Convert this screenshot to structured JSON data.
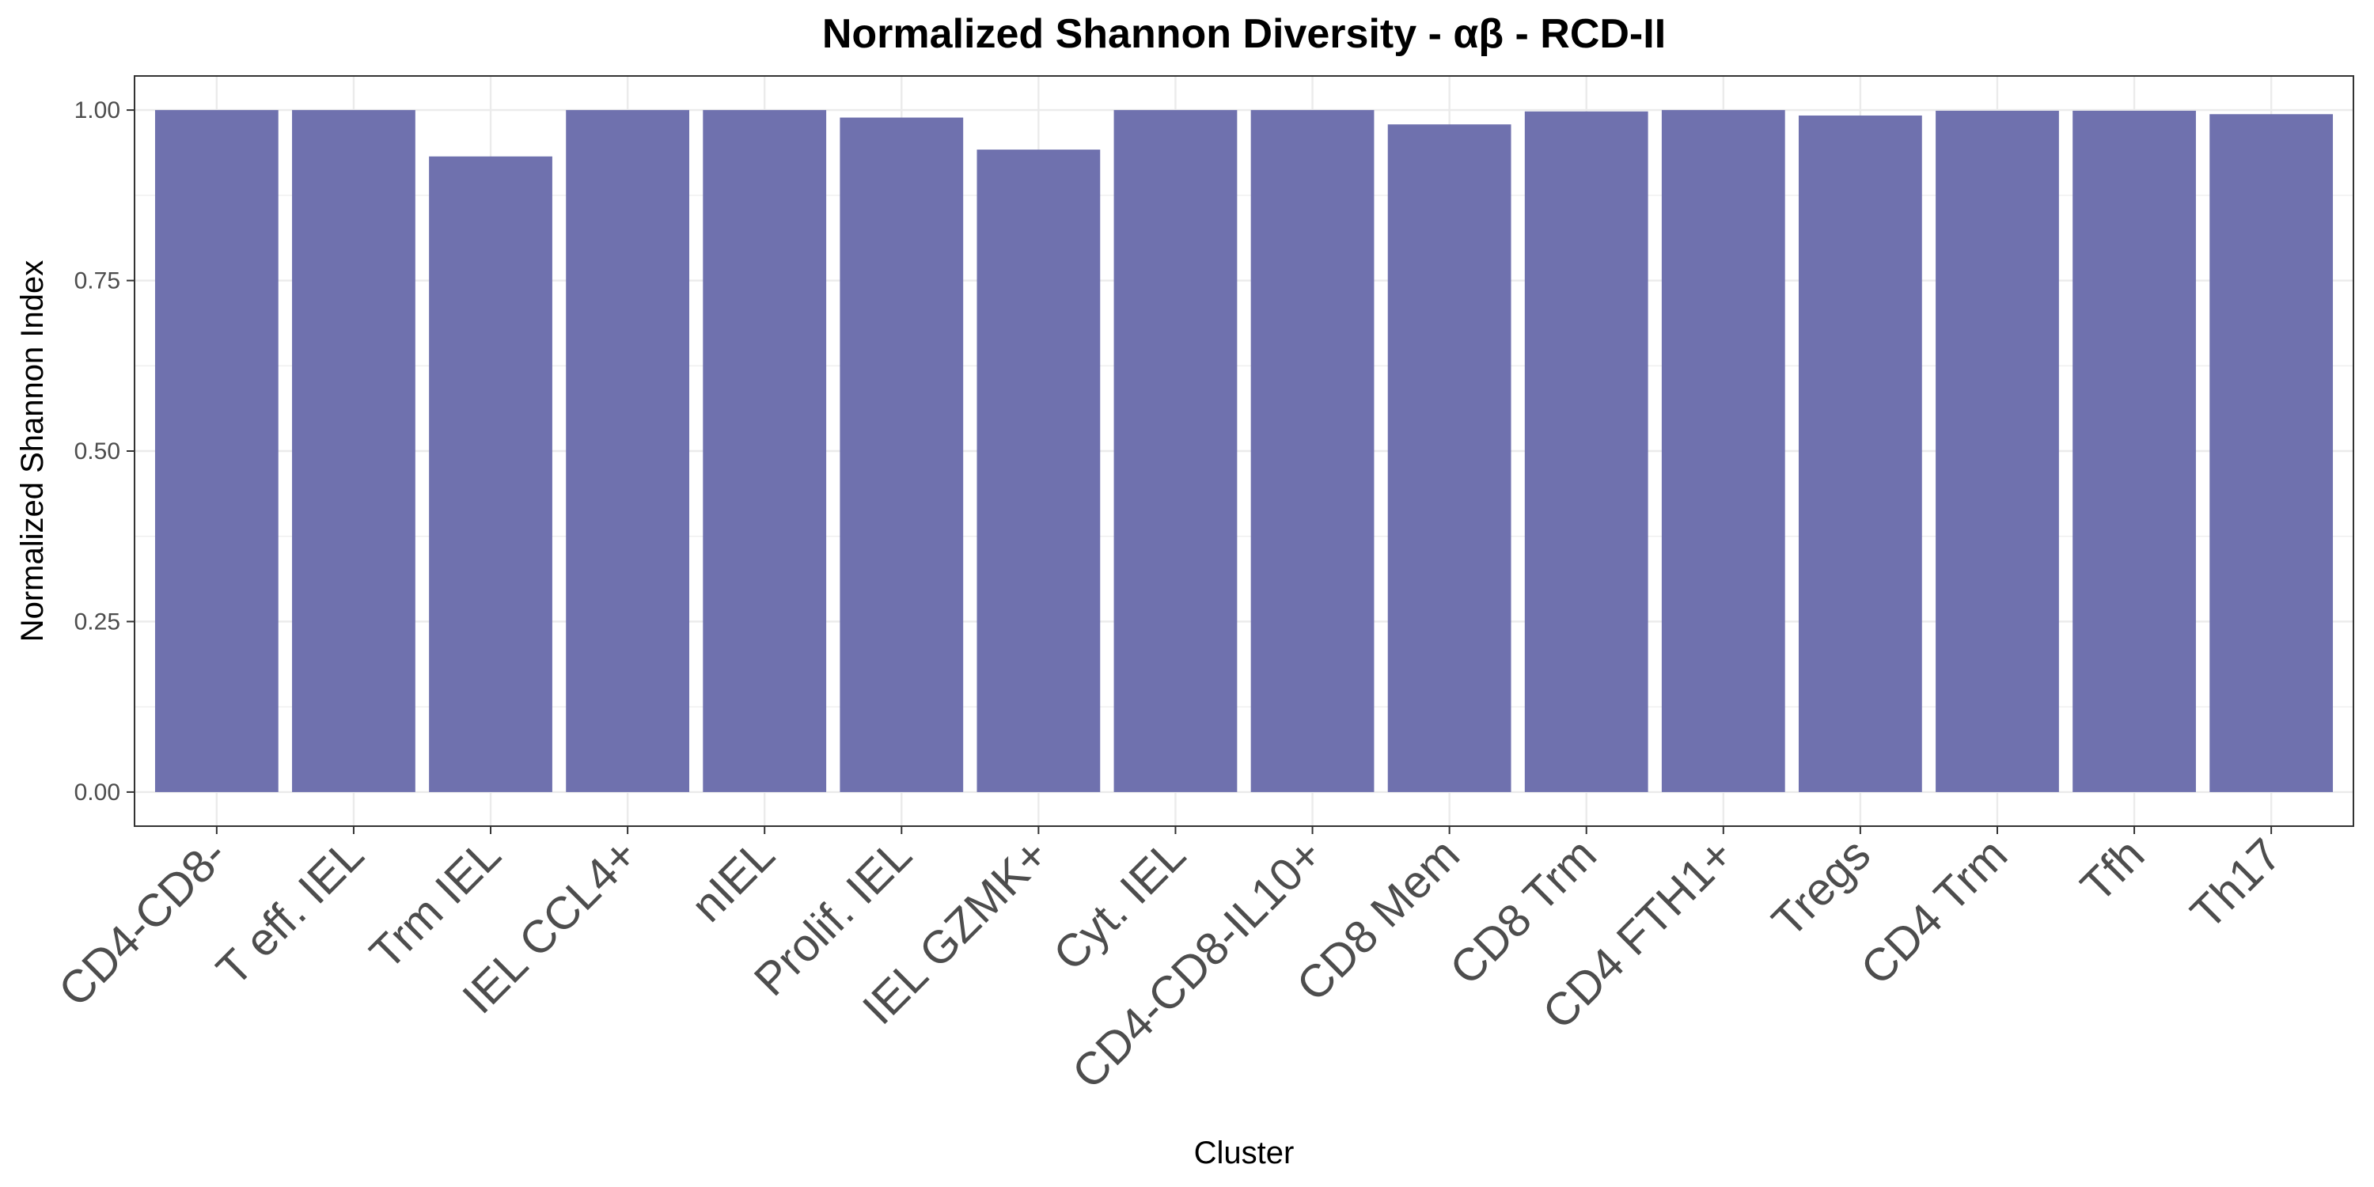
{
  "chart_data": {
    "type": "bar",
    "title": "Normalized Shannon Diversity - αβ - RCD-II",
    "xlabel": "Cluster",
    "ylabel": "Normalized Shannon Index",
    "categories": [
      "CD4-CD8-",
      "T eff. IEL",
      "Trm IEL",
      "IEL CCL4+",
      "nIEL",
      "Prolif. IEL",
      "IEL GZMK+",
      "Cyt. IEL",
      "CD4-CD8-IL10+",
      "CD8 Mem",
      "CD8 Trm",
      "CD4 FTH1+",
      "Tregs",
      "CD4 Trm",
      "Tfh",
      "Th17"
    ],
    "values": [
      1.0,
      1.0,
      0.932,
      1.0,
      1.0,
      0.989,
      0.942,
      1.0,
      1.0,
      0.979,
      0.998,
      1.0,
      0.992,
      0.999,
      0.999,
      0.994
    ],
    "ylim": [
      -0.05,
      1.05
    ],
    "yticks": [
      0.0,
      0.25,
      0.5,
      0.75,
      1.0
    ],
    "ytick_labels": [
      "0.00",
      "0.25",
      "0.50",
      "0.75",
      "1.00"
    ],
    "grid": true,
    "legend": "none",
    "bar_color": "#6f71ae",
    "gridline_color": "#ebebeb",
    "panel_border_color": "#333333"
  }
}
